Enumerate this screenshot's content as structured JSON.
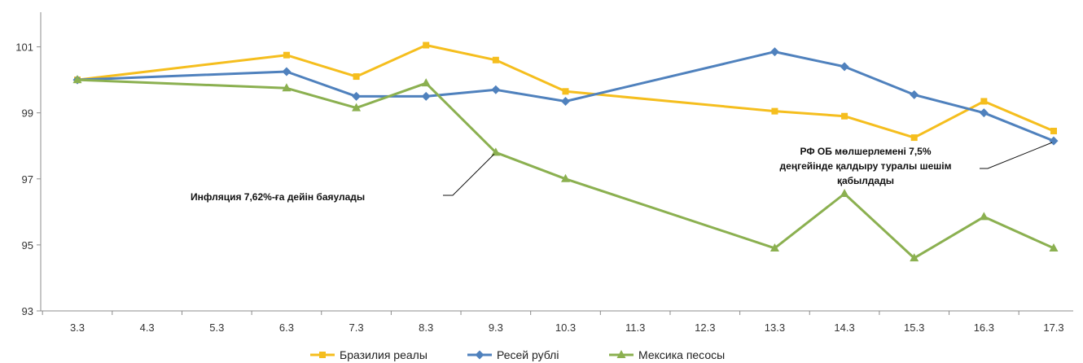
{
  "chart_data": {
    "type": "line",
    "title": "",
    "xlabel": "",
    "ylabel": "",
    "categories": [
      "3.3",
      "4.3",
      "5.3",
      "6.3",
      "7.3",
      "8.3",
      "9.3",
      "10.3",
      "11.3",
      "12.3",
      "13.3",
      "14.3",
      "15.3",
      "16.3",
      "17.3"
    ],
    "y_ticks": [
      "93",
      "95",
      "97",
      "99",
      "101"
    ],
    "ylim": [
      93,
      102
    ],
    "grid": false,
    "legend_position": "bottom",
    "series": [
      {
        "name": "Бразилия реалы",
        "color": "#F5BE1E",
        "marker": "square",
        "points": [
          {
            "x": "3.3",
            "y": 100.0
          },
          {
            "x": "6.3",
            "y": 100.75
          },
          {
            "x": "7.3",
            "y": 100.1
          },
          {
            "x": "8.3",
            "y": 101.05
          },
          {
            "x": "9.3",
            "y": 100.6
          },
          {
            "x": "10.3",
            "y": 99.65
          },
          {
            "x": "13.3",
            "y": 99.05
          },
          {
            "x": "14.3",
            "y": 98.9
          },
          {
            "x": "15.3",
            "y": 98.25
          },
          {
            "x": "16.3",
            "y": 99.35
          },
          {
            "x": "17.3",
            "y": 98.45
          }
        ]
      },
      {
        "name": "Ресей рублі",
        "color": "#4F81BD",
        "marker": "diamond",
        "points": [
          {
            "x": "3.3",
            "y": 100.0
          },
          {
            "x": "6.3",
            "y": 100.25
          },
          {
            "x": "7.3",
            "y": 99.5
          },
          {
            "x": "8.3",
            "y": 99.5
          },
          {
            "x": "9.3",
            "y": 99.7
          },
          {
            "x": "10.3",
            "y": 99.35
          },
          {
            "x": "13.3",
            "y": 100.85
          },
          {
            "x": "14.3",
            "y": 100.4
          },
          {
            "x": "15.3",
            "y": 99.55
          },
          {
            "x": "16.3",
            "y": 99.0
          },
          {
            "x": "17.3",
            "y": 98.15
          }
        ]
      },
      {
        "name": "Мексика песосы",
        "color": "#8BB050",
        "marker": "triangle",
        "points": [
          {
            "x": "3.3",
            "y": 100.0
          },
          {
            "x": "6.3",
            "y": 99.75
          },
          {
            "x": "7.3",
            "y": 99.15
          },
          {
            "x": "8.3",
            "y": 99.9
          },
          {
            "x": "9.3",
            "y": 97.8
          },
          {
            "x": "10.3",
            "y": 97.0
          },
          {
            "x": "13.3",
            "y": 94.9
          },
          {
            "x": "14.3",
            "y": 96.55
          },
          {
            "x": "15.3",
            "y": 94.6
          },
          {
            "x": "16.3",
            "y": 95.85
          },
          {
            "x": "17.3",
            "y": 94.9
          }
        ]
      }
    ],
    "annotations": [
      {
        "lines": [
          "Инфляция 7,62%-ға дейін баяулады"
        ],
        "target": {
          "x": "9.3",
          "y": 97.8
        }
      },
      {
        "lines": [
          "РФ ОБ мөлшерлемені 7,5%",
          "деңгейінде қалдыру туралы шешім",
          "қабылдады"
        ],
        "target": {
          "x": "17.3",
          "y": 98.15
        }
      }
    ]
  }
}
